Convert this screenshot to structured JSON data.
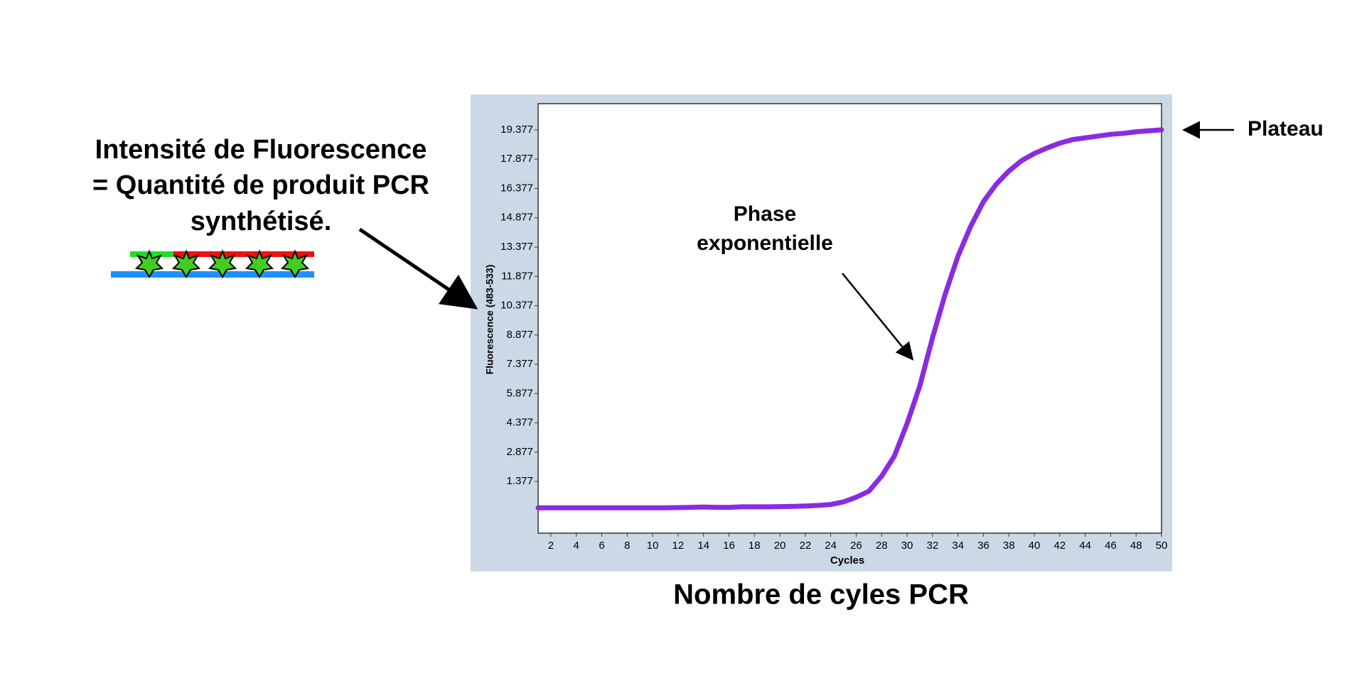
{
  "chart_data": {
    "type": "line",
    "x_label": "Cycles",
    "y_label": "Fluorescence (483-533)",
    "annotations": [
      "Intensité de Fluorescence",
      "= Quantité de produit PCR",
      "synthétisé.",
      "Phase",
      "exponentielle",
      "Plateau",
      "Nombre de cyles PCR"
    ],
    "x": [
      1,
      2,
      3,
      4,
      5,
      6,
      7,
      8,
      9,
      10,
      11,
      12,
      13,
      14,
      15,
      16,
      17,
      18,
      19,
      20,
      21,
      22,
      23,
      24,
      25,
      26,
      27,
      28,
      29,
      30,
      31,
      32,
      33,
      34,
      35,
      36,
      37,
      38,
      39,
      40,
      41,
      42,
      43,
      44,
      45,
      46,
      47,
      48,
      49,
      50
    ],
    "values": [
      0.03,
      0.03,
      0.03,
      0.03,
      0.03,
      0.03,
      0.03,
      0.03,
      0.03,
      0.03,
      0.03,
      0.04,
      0.05,
      0.07,
      0.05,
      0.05,
      0.08,
      0.08,
      0.08,
      0.09,
      0.1,
      0.12,
      0.15,
      0.2,
      0.33,
      0.57,
      0.88,
      1.65,
      2.68,
      4.34,
      6.27,
      8.74,
      10.98,
      12.91,
      14.44,
      15.7,
      16.59,
      17.27,
      17.8,
      18.17,
      18.45,
      18.7,
      18.88,
      18.97,
      19.06,
      19.15,
      19.2,
      19.28,
      19.33,
      19.38
    ],
    "color": "#8a2be2",
    "xlim": [
      1,
      50
    ],
    "xticks": [
      2,
      4,
      6,
      8,
      10,
      12,
      14,
      16,
      18,
      20,
      22,
      24,
      26,
      28,
      30,
      32,
      34,
      36,
      38,
      40,
      42,
      44,
      46,
      48,
      50
    ],
    "ylim": [
      -1.27,
      20.72
    ],
    "yticks": [
      1.377,
      2.877,
      4.377,
      5.877,
      7.377,
      8.877,
      10.377,
      11.877,
      13.377,
      14.877,
      16.377,
      17.877,
      19.377
    ],
    "grid": false
  }
}
